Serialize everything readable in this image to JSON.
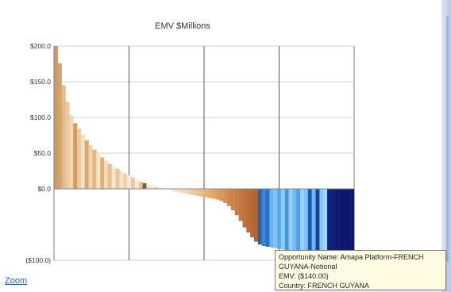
{
  "chart_data": {
    "type": "bar",
    "title": "EMV $Millions",
    "ylim": [
      -100,
      200
    ],
    "yticks": [
      {
        "value": 200,
        "label": "$200.0"
      },
      {
        "value": 150,
        "label": "$150.0"
      },
      {
        "value": 100,
        "label": "$100.0"
      },
      {
        "value": 50,
        "label": "$50.0"
      },
      {
        "value": 0,
        "label": "$0.0"
      },
      {
        "value": -100,
        "label": "($100.0)"
      }
    ],
    "grid": true,
    "legend": "none",
    "bars": [
      {
        "value": 200,
        "color": "#cf9b67"
      },
      {
        "value": 176,
        "color": "#d3a26f"
      },
      {
        "value": 145,
        "color": "#e1bb8c"
      },
      {
        "value": 122,
        "color": "#e8c9a0"
      },
      {
        "value": 103,
        "color": "#f1d7b6"
      },
      {
        "value": 92,
        "color": "#d39b62"
      },
      {
        "value": 84,
        "color": "#ebcc9e"
      },
      {
        "value": 76,
        "color": "#f4dfc1"
      },
      {
        "value": 68,
        "color": "#d9a76f"
      },
      {
        "value": 61,
        "color": "#f1d4ae"
      },
      {
        "value": 55,
        "color": "#e5b783"
      },
      {
        "value": 49,
        "color": "#f7e4cb"
      },
      {
        "value": 44,
        "color": "#e1b17d"
      },
      {
        "value": 39,
        "color": "#f2dbbe"
      },
      {
        "value": 35,
        "color": "#e8c08f"
      },
      {
        "value": 31,
        "color": "#f8e8d3"
      },
      {
        "value": 28,
        "color": "#e7c59a"
      },
      {
        "value": 25,
        "color": "#f6e2c6"
      },
      {
        "value": 22,
        "color": "#efd3ad"
      },
      {
        "value": 19,
        "color": "#fae9d8"
      },
      {
        "value": 16,
        "color": "#ebc899"
      },
      {
        "value": 13,
        "color": "#f9ebdc"
      },
      {
        "value": 10,
        "color": "#ecc79b"
      },
      {
        "value": 8,
        "color": "#7f5a3f"
      },
      {
        "value": 6,
        "color": "#f5e0c5"
      },
      {
        "value": 4,
        "color": "#f7e7d6"
      },
      {
        "value": 3,
        "color": "#efd9bd"
      },
      {
        "value": 2,
        "color": "#faefe2"
      },
      {
        "value": 1,
        "color": "#f7e6d2"
      },
      {
        "value": 0.5,
        "color": "#faf1e6"
      },
      {
        "value": -2,
        "color": "#f9ebdc"
      },
      {
        "value": -4,
        "color": "#f6e3cd"
      },
      {
        "value": -5,
        "color": "#f4ddc2"
      },
      {
        "value": -6,
        "color": "#f3dabc"
      },
      {
        "value": -7,
        "color": "#f1d5b2"
      },
      {
        "value": -8,
        "color": "#efcfa8"
      },
      {
        "value": -9,
        "color": "#edc89d"
      },
      {
        "value": -10,
        "color": "#ebc393"
      },
      {
        "value": -11,
        "color": "#e8bd89"
      },
      {
        "value": -12,
        "color": "#e5b47e"
      },
      {
        "value": -13,
        "color": "#e2ad74"
      },
      {
        "value": -14,
        "color": "#dfa56a"
      },
      {
        "value": -15,
        "color": "#db9d61"
      },
      {
        "value": -17,
        "color": "#d8975b"
      },
      {
        "value": -20,
        "color": "#d49057"
      },
      {
        "value": -24,
        "color": "#cf8850"
      },
      {
        "value": -30,
        "color": "#cb834b"
      },
      {
        "value": -37,
        "color": "#c77d46"
      },
      {
        "value": -45,
        "color": "#c27741"
      },
      {
        "value": -54,
        "color": "#be723d"
      },
      {
        "value": -61,
        "color": "#ba6d39"
      },
      {
        "value": -68,
        "color": "#b56936"
      },
      {
        "value": -74,
        "color": "#b26532"
      },
      {
        "value": -78,
        "color": "#2f5ea6"
      },
      {
        "value": -80,
        "color": "#3b86d4"
      },
      {
        "value": -81,
        "color": "#2f6fbe"
      },
      {
        "value": -82,
        "color": "#69b5f3"
      },
      {
        "value": -83,
        "color": "#80c4f7"
      },
      {
        "value": -84,
        "color": "#5aa8ec"
      },
      {
        "value": -85,
        "color": "#8dcdfa"
      },
      {
        "value": -86,
        "color": "#3f95e0"
      },
      {
        "value": -87,
        "color": "#91d0fb"
      },
      {
        "value": -88,
        "color": "#73bdf5"
      },
      {
        "value": -89,
        "color": "#4e9ee8"
      },
      {
        "value": -90,
        "color": "#9ad4fb"
      },
      {
        "value": -91,
        "color": "#7fc3f7"
      },
      {
        "value": -92,
        "color": "#2157b0"
      },
      {
        "value": -93,
        "color": "#6db8f4"
      },
      {
        "value": -94,
        "color": "#1d3e95"
      },
      {
        "value": -95,
        "color": "#86c8f8"
      },
      {
        "value": -96,
        "color": "#9fd7fc"
      },
      {
        "value": -97,
        "color": "#12237b"
      },
      {
        "value": -97,
        "color": "#0f1f76"
      },
      {
        "value": -98,
        "color": "#0d1c72"
      },
      {
        "value": -98,
        "color": "#0d1a70"
      },
      {
        "value": -99,
        "color": "#0d196f"
      },
      {
        "value": -99,
        "color": "#0c186d"
      },
      {
        "value": -100,
        "color": "#0b176b"
      }
    ]
  },
  "tooltip": {
    "lines": [
      "Opportunity Name: Amapa Platform-FRENCH",
      "GUYANA-Notional",
      "EMV: ($140.00)",
      "Country: FRENCH GUYANA"
    ]
  },
  "zoom": {
    "label": "Zoom"
  },
  "colors": {
    "grid": "#cfcfcf",
    "axis": "#7a7a7a",
    "text": "#333333",
    "zoom": "#2f56c4"
  }
}
